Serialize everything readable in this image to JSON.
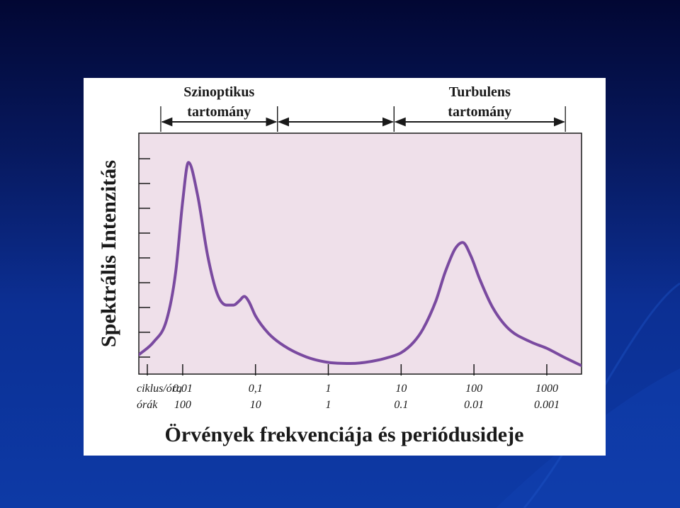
{
  "colors": {
    "slide_background_top": "#020733",
    "slide_background_bottom": "#0d3aa6",
    "panel": "#ffffff",
    "plot_fill": "#efe0ea",
    "curve": "#7a4aa0",
    "ink": "#1a1a1a"
  },
  "chart_data": {
    "type": "line",
    "title": "Örvények frekvenciája és periódusideje",
    "ylabel": "Spektrális Intenzitás",
    "x_scale": "log",
    "xlim_cycles_per_hour": [
      0.0025,
      3000
    ],
    "ylim": [
      0,
      1
    ],
    "y_ticks_unlabeled": 9,
    "grid": false,
    "legend": "none",
    "x_rows": [
      {
        "label": "ciklus/óra",
        "ticks": [
          "0,01",
          "0,1",
          "1",
          "10",
          "100",
          "1000"
        ]
      },
      {
        "label": "órák",
        "ticks": [
          "100",
          "10",
          "1",
          "0.1",
          "0.01",
          "0.001"
        ]
      }
    ],
    "x_tick_values": [
      0.01,
      0.1,
      1,
      10,
      100,
      1000
    ],
    "ranges": [
      {
        "label_line1": "Szinoptikus",
        "label_line2": "tartomány",
        "from": 0.005,
        "to": 0.2
      },
      {
        "label_line1": "",
        "label_line2": "",
        "from": 0.2,
        "to": 8
      },
      {
        "label_line1": "Turbulens",
        "label_line2": "tartomány",
        "from": 8,
        "to": 1800
      }
    ],
    "series": [
      {
        "x": [
          0.0025,
          0.004,
          0.006,
          0.008,
          0.01,
          0.012,
          0.016,
          0.022,
          0.03,
          0.04,
          0.05,
          0.06,
          0.07,
          0.08,
          0.1,
          0.15,
          0.25,
          0.5,
          1,
          2,
          4,
          7,
          10,
          15,
          20,
          30,
          40,
          55,
          70,
          90,
          120,
          180,
          300,
          600,
          1000,
          1700,
          3000
        ],
        "y": [
          0.04,
          0.1,
          0.2,
          0.42,
          0.75,
          0.93,
          0.78,
          0.5,
          0.32,
          0.27,
          0.27,
          0.29,
          0.31,
          0.29,
          0.22,
          0.14,
          0.08,
          0.03,
          0.005,
          0.0,
          0.01,
          0.03,
          0.05,
          0.1,
          0.16,
          0.29,
          0.42,
          0.53,
          0.56,
          0.5,
          0.39,
          0.26,
          0.16,
          0.1,
          0.07,
          0.03,
          -0.01
        ]
      }
    ]
  }
}
